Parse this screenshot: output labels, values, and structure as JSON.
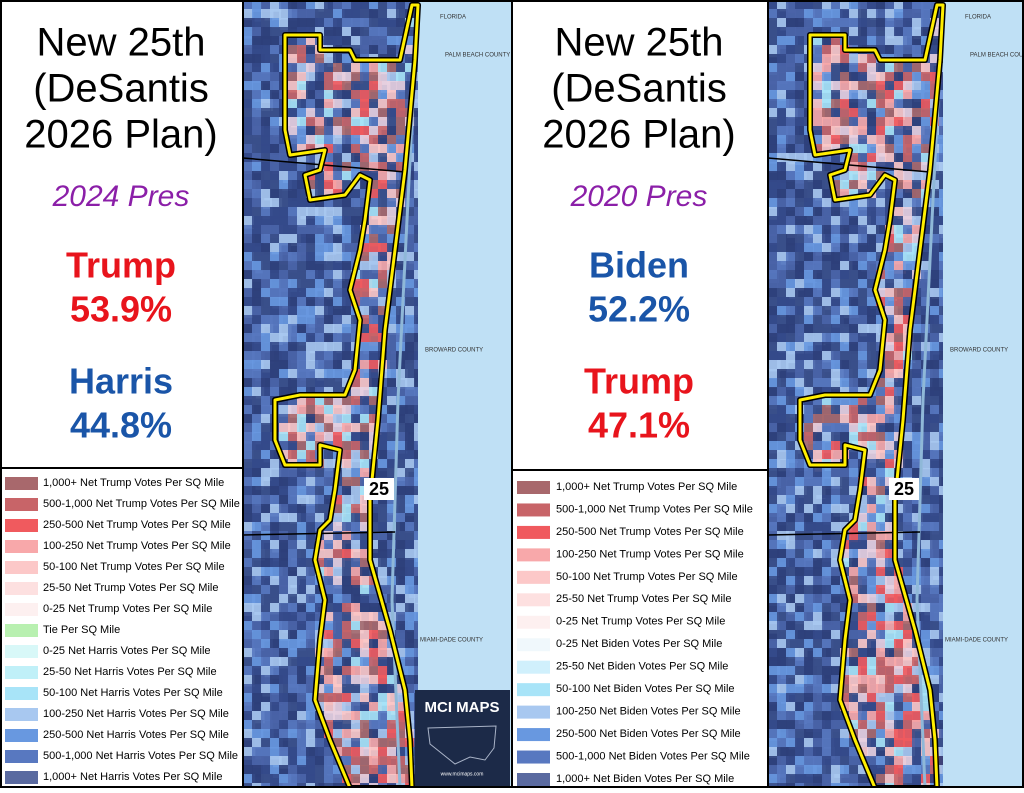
{
  "panels": [
    {
      "title_lines": [
        "New 25th",
        "(DeSantis",
        "2026 Plan)"
      ],
      "subtitle": "2024 Pres",
      "results": [
        {
          "name": "Trump",
          "pct": "53.9%",
          "color": "#e8141c"
        },
        {
          "name": "Harris",
          "pct": "44.8%",
          "color": "#1a55a8"
        }
      ],
      "legend": [
        {
          "label": "1,000+ Net Trump Votes Per SQ Mile",
          "color": "#a8686c"
        },
        {
          "label": "500-1,000 Net Trump Votes Per SQ Mile",
          "color": "#c86468"
        },
        {
          "label": "250-500 Net Trump Votes Per SQ Mile",
          "color": "#f05a5e"
        },
        {
          "label": "100-250 Net Trump Votes Per SQ Mile",
          "color": "#f8a8aa"
        },
        {
          "label": "50-100 Net Trump Votes Per SQ Mile",
          "color": "#fcc8c8"
        },
        {
          "label": "25-50 Net Trump Votes Per SQ Mile",
          "color": "#fde0e0"
        },
        {
          "label": "0-25 Net Trump Votes Per SQ Mile",
          "color": "#fdf0f0"
        },
        {
          "label": "Tie Per SQ Mile",
          "color": "#b8f0b0"
        },
        {
          "label": "0-25 Net Harris Votes Per SQ Mile",
          "color": "#d8f8f8"
        },
        {
          "label": "25-50 Net Harris Votes Per SQ Mile",
          "color": "#c0f0f8"
        },
        {
          "label": "50-100 Net Harris Votes Per SQ Mile",
          "color": "#a8e4f8"
        },
        {
          "label": "100-250 Net Harris Votes Per SQ Mile",
          "color": "#a8c8f0"
        },
        {
          "label": "250-500 Net Harris Votes Per SQ Mile",
          "color": "#6898e0"
        },
        {
          "label": "500-1,000 Net Harris Votes Per SQ Mile",
          "color": "#5878c0"
        },
        {
          "label": "1,000+ Net Harris Votes Per SQ Mile",
          "color": "#5a6aa0"
        }
      ],
      "district": "25",
      "map_labels": [
        "FLORIDA",
        "PALM BEACH COUNTY",
        "BROWARD COUNTY",
        "MIAMI-DADE COUNTY"
      ]
    },
    {
      "title_lines": [
        "New 25th",
        "(DeSantis",
        "2026 Plan)"
      ],
      "subtitle": "2020 Pres",
      "results": [
        {
          "name": "Biden",
          "pct": "52.2%",
          "color": "#1a55a8"
        },
        {
          "name": "Trump",
          "pct": "47.1%",
          "color": "#e8141c"
        }
      ],
      "legend": [
        {
          "label": "1,000+ Net Trump Votes Per SQ Mile",
          "color": "#a8686c"
        },
        {
          "label": "500-1,000 Net Trump Votes Per SQ Mile",
          "color": "#c86468"
        },
        {
          "label": "250-500 Net Trump Votes Per SQ Mile",
          "color": "#f05a5e"
        },
        {
          "label": "100-250 Net Trump Votes Per SQ Mile",
          "color": "#f8a8aa"
        },
        {
          "label": "50-100 Net Trump Votes Per SQ Mile",
          "color": "#fcc8c8"
        },
        {
          "label": "25-50 Net Trump Votes Per SQ Mile",
          "color": "#fde0e0"
        },
        {
          "label": "0-25 Net Trump Votes Per SQ Mile",
          "color": "#fdf0f0"
        },
        {
          "label": "0-25 Net Biden Votes Per SQ Mile",
          "color": "#f0f8fc"
        },
        {
          "label": "25-50 Net Biden Votes Per SQ Mile",
          "color": "#d0f0fc"
        },
        {
          "label": "50-100 Net Biden Votes Per SQ Mile",
          "color": "#a8e4f8"
        },
        {
          "label": "100-250 Net Biden Votes Per SQ Mile",
          "color": "#a8c8f0"
        },
        {
          "label": "250-500 Net Biden Votes Per SQ Mile",
          "color": "#6898e0"
        },
        {
          "label": "500-1,000 Net Biden Votes Per SQ Mile",
          "color": "#5878c0"
        },
        {
          "label": "1,000+ Net Biden Votes Per SQ Mile",
          "color": "#5a6aa0"
        }
      ],
      "district": "25",
      "map_labels": [
        "FLORIDA",
        "PALM BEACH COUNTY",
        "BROWARD COUNTY",
        "MIAMI-DADE COUNTY"
      ]
    }
  ],
  "logo": {
    "title": "MCI MAPS",
    "url": "www.mcimaps.com"
  }
}
